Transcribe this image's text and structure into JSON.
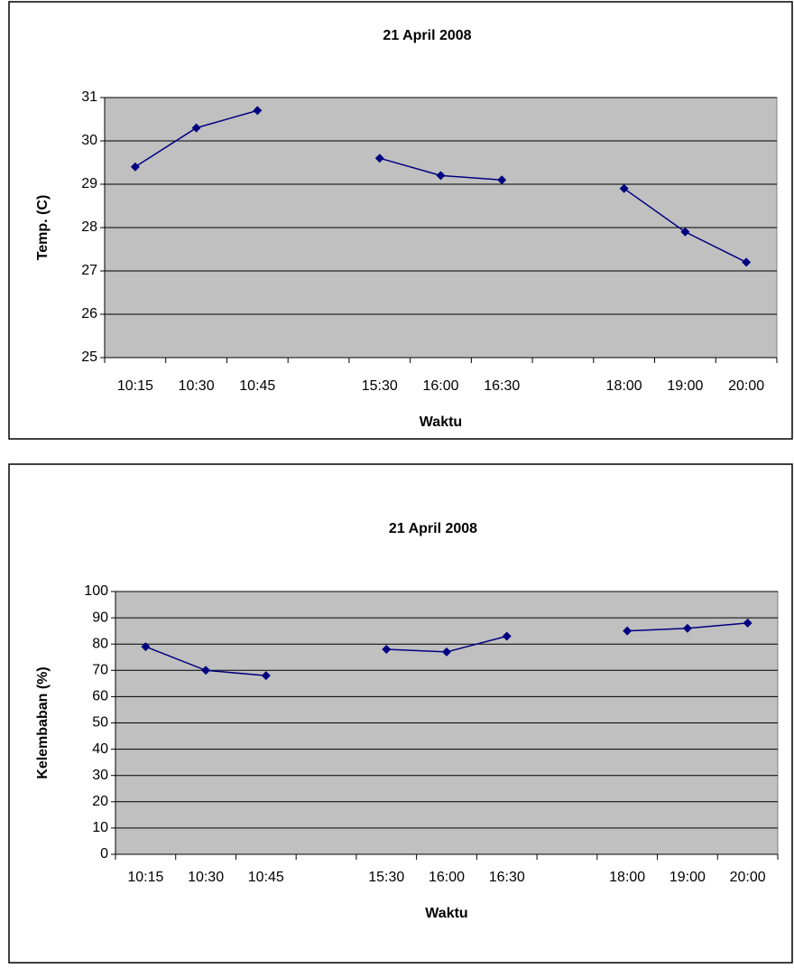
{
  "chart_data": [
    {
      "type": "line",
      "title": "21 April 2008",
      "x_label": "Waktu",
      "y_label": "Temp. (C)",
      "categories": [
        "10:15",
        "10:30",
        "10:45",
        null,
        "15:30",
        "16:00",
        "16:30",
        null,
        "18:00",
        "19:00",
        "20:00"
      ],
      "series": [
        {
          "color": "#000080",
          "values": [
            29.4,
            30.3,
            30.7,
            null,
            29.6,
            29.2,
            29.1,
            null,
            28.9,
            27.9,
            27.2
          ]
        }
      ],
      "ylim": [
        25,
        31
      ],
      "yticks": [
        25,
        26,
        27,
        28,
        29,
        30,
        31
      ],
      "grid": true
    },
    {
      "type": "line",
      "title": "21 April 2008",
      "x_label": "Waktu",
      "y_label": "Kelembaban (%)",
      "categories": [
        "10:15",
        "10:30",
        "10:45",
        null,
        "15:30",
        "16:00",
        "16:30",
        null,
        "18:00",
        "19:00",
        "20:00"
      ],
      "series": [
        {
          "color": "#000080",
          "values": [
            79,
            70,
            68,
            null,
            78,
            77,
            83,
            null,
            85,
            86,
            88
          ]
        }
      ],
      "ylim": [
        0,
        100
      ],
      "yticks": [
        0,
        10,
        20,
        30,
        40,
        50,
        60,
        70,
        80,
        90,
        100
      ],
      "grid": true
    }
  ]
}
